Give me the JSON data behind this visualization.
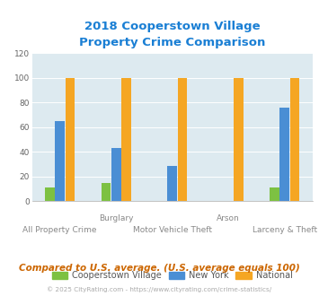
{
  "title": "2018 Cooperstown Village\nProperty Crime Comparison",
  "title_color": "#1a7fd4",
  "categories": [
    "All Property Crime",
    "Burglary",
    "Motor Vehicle Theft",
    "Arson",
    "Larceny & Theft"
  ],
  "cooperstown": [
    11,
    15,
    0,
    0,
    11
  ],
  "new_york": [
    65,
    43,
    29,
    0,
    76
  ],
  "national": [
    100,
    100,
    100,
    100,
    100
  ],
  "bar_colors": {
    "cooperstown": "#7dc142",
    "new_york": "#4a8ed4",
    "national": "#f5a623"
  },
  "ylim": [
    0,
    120
  ],
  "yticks": [
    0,
    20,
    40,
    60,
    80,
    100,
    120
  ],
  "plot_bg": "#ddeaf0",
  "legend_labels": [
    "Cooperstown Village",
    "New York",
    "National"
  ],
  "footer_text": "Compared to U.S. average. (U.S. average equals 100)",
  "footer_color": "#cc6600",
  "copyright_text": "© 2025 CityRating.com - https://www.cityrating.com/crime-statistics/",
  "copyright_color": "#aaaaaa",
  "x_top_labels": [
    [
      "Burglary",
      1.5
    ],
    [
      "Arson",
      3.5
    ]
  ],
  "x_bot_labels": [
    [
      "All Property Crime",
      0.5
    ],
    [
      "Motor Vehicle Theft",
      2.5
    ],
    [
      "Larceny & Theft",
      4.5
    ]
  ]
}
